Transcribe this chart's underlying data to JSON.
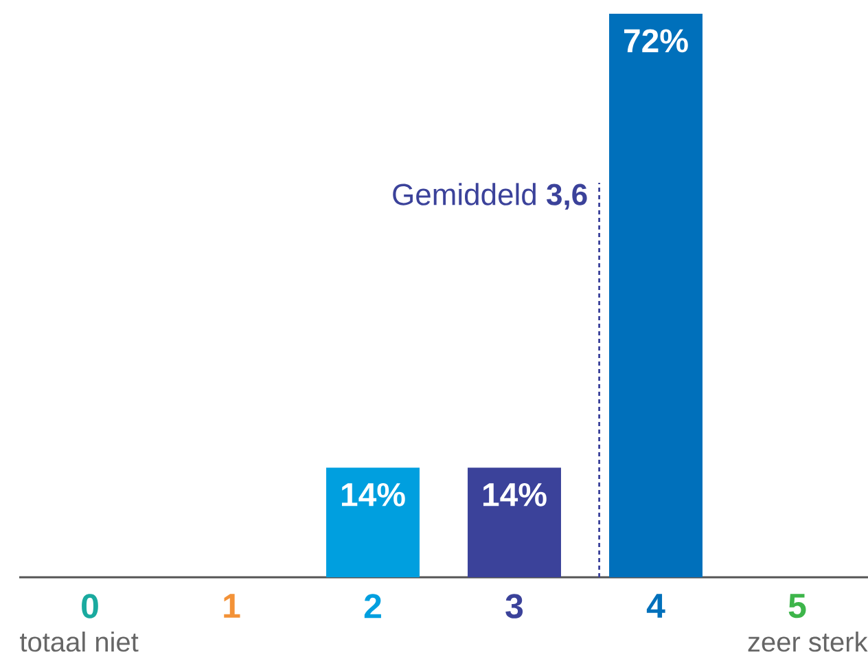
{
  "chart_data": {
    "type": "bar",
    "x": [
      0,
      1,
      2,
      3,
      4,
      5
    ],
    "values": [
      0,
      0,
      14,
      14,
      72,
      0
    ],
    "colors": [
      "#1AAA9F",
      "#F39237",
      "#009FDF",
      "#3B429A",
      "#0070BB",
      "#3DB54A"
    ],
    "value_labels": [
      null,
      null,
      "14%",
      "14%",
      "72%",
      null
    ],
    "xlim": [
      -0.5,
      5.5
    ],
    "xticks": [
      0,
      1,
      2,
      3,
      4,
      5
    ],
    "ylim": [
      0,
      72
    ],
    "tick_labels": "x",
    "ref_lines": [
      {
        "axis": "x",
        "value": 3.6,
        "label": "Gemiddeld **3,6**",
        "color": "#3B429A",
        "line_style": "dashed"
      }
    ],
    "annotations": [
      "totaal niet",
      "zeer sterk"
    ]
  }
}
